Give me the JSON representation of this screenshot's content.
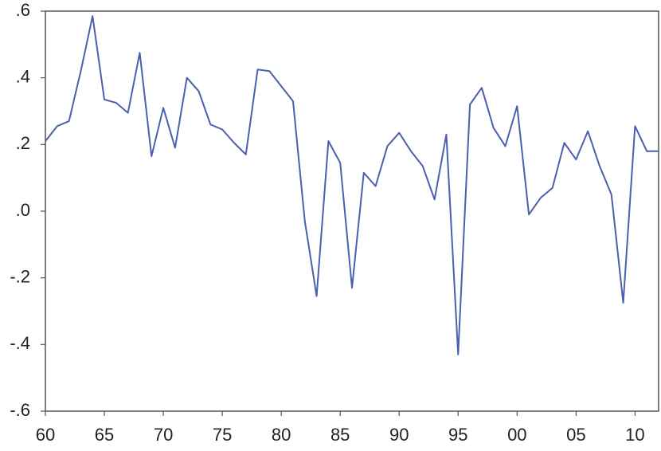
{
  "chart_data": {
    "type": "line",
    "color": "#4a5fae",
    "x": [
      1960,
      1961,
      1962,
      1963,
      1964,
      1965,
      1966,
      1967,
      1968,
      1969,
      1970,
      1971,
      1972,
      1973,
      1974,
      1975,
      1976,
      1977,
      1978,
      1979,
      1980,
      1981,
      1982,
      1983,
      1984,
      1985,
      1986,
      1987,
      1988,
      1989,
      1990,
      1991,
      1992,
      1993,
      1994,
      1995,
      1996,
      1997,
      1998,
      1999,
      2000,
      2001,
      2002,
      2003,
      2004,
      2005,
      2006,
      2007,
      2008,
      2009,
      2010,
      2011,
      2012
    ],
    "values": [
      0.21,
      0.255,
      0.27,
      0.42,
      0.585,
      0.335,
      0.325,
      0.295,
      0.475,
      0.165,
      0.31,
      0.19,
      0.4,
      0.36,
      0.26,
      0.245,
      0.205,
      0.17,
      0.425,
      0.42,
      0.375,
      0.33,
      -0.03,
      -0.255,
      0.21,
      0.145,
      -0.23,
      0.115,
      0.075,
      0.195,
      0.235,
      0.18,
      0.135,
      0.035,
      0.23,
      -0.43,
      0.32,
      0.37,
      0.25,
      0.195,
      0.315,
      -0.01,
      0.04,
      0.07,
      0.205,
      0.155,
      0.24,
      0.135,
      0.05,
      -0.275,
      0.255,
      0.18,
      0.18
    ],
    "xlim": [
      1960,
      2012
    ],
    "xticks": [
      {
        "value": 1960,
        "label": "60"
      },
      {
        "value": 1965,
        "label": "65"
      },
      {
        "value": 1970,
        "label": "70"
      },
      {
        "value": 1975,
        "label": "75"
      },
      {
        "value": 1980,
        "label": "80"
      },
      {
        "value": 1985,
        "label": "85"
      },
      {
        "value": 1990,
        "label": "90"
      },
      {
        "value": 1995,
        "label": "95"
      },
      {
        "value": 2000,
        "label": "00"
      },
      {
        "value": 2005,
        "label": "05"
      },
      {
        "value": 2010,
        "label": "10"
      }
    ],
    "ylim": [
      -0.6,
      0.6
    ],
    "yticks": [
      {
        "value": 0.6,
        "label": ".6"
      },
      {
        "value": 0.4,
        "label": ".4"
      },
      {
        "value": 0.2,
        "label": ".2"
      },
      {
        "value": 0,
        "label": ".0"
      },
      {
        "value": -0.2,
        "label": "-.2"
      },
      {
        "value": -0.4,
        "label": "-.4"
      },
      {
        "value": -0.6,
        "label": "-.6"
      }
    ],
    "grid": false
  }
}
